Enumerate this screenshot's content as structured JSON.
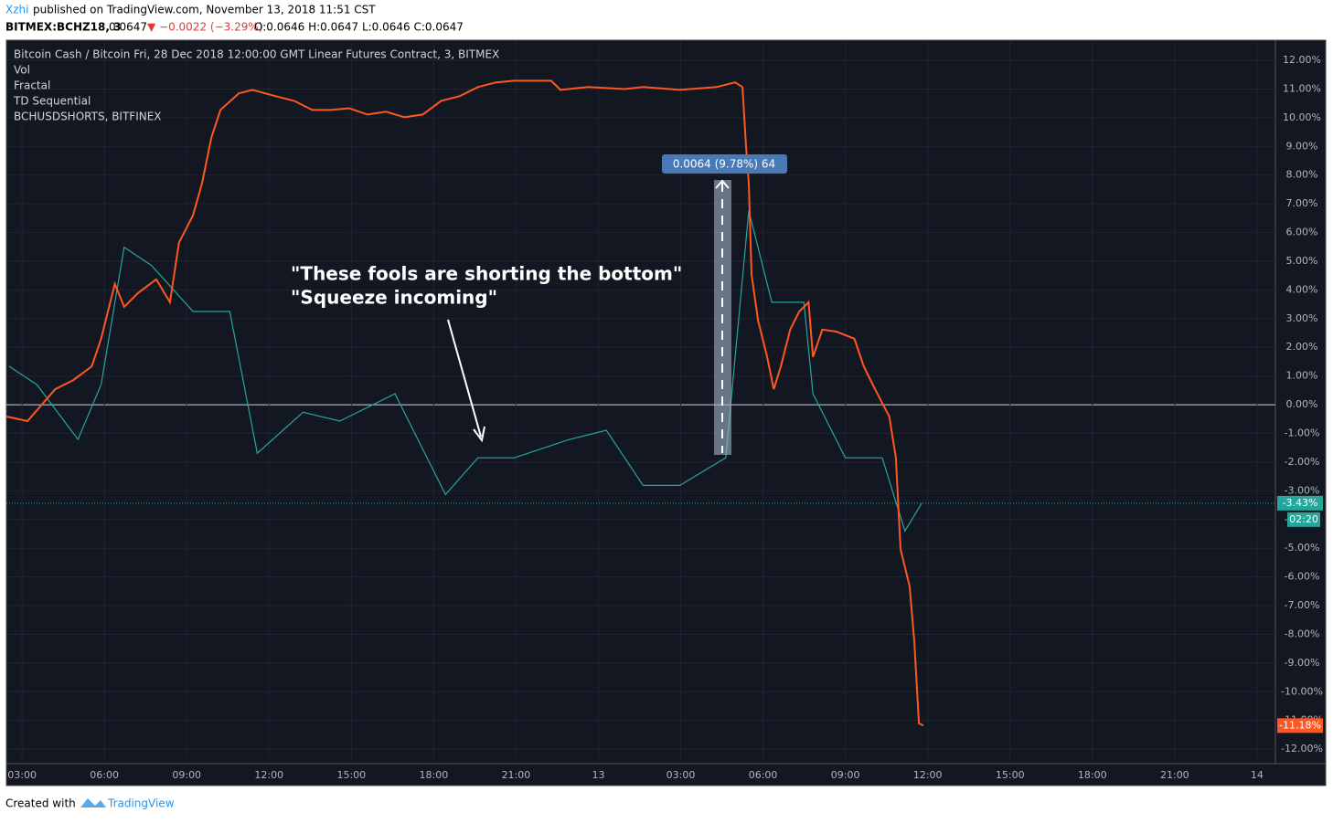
{
  "header": {
    "author": "Xzhi",
    "published": "published on TradingView.com, November 13, 2018 11:51 CST",
    "symbol": "BITMEX:BCHZ18, 3",
    "price": "0.0647",
    "change": "▼ −0.0022 (−3.29%)",
    "ohlc": "O:0.0646 H:0.0647 L:0.0646 C:0.0647"
  },
  "legend_extras": [
    "Vol",
    "Fractal",
    "TD Sequential"
  ],
  "annotations": [
    "\"These fools are shorting the bottom\"",
    "\"Squeeze incoming\""
  ],
  "measure_label": "0.0064 (9.78%) 64",
  "countdown": "02:20",
  "footer": {
    "created": "Created with",
    "brand": "TradingView"
  },
  "chart_data": {
    "type": "line",
    "series": [
      {
        "name": "Bitcoin Cash / Bitcoin Fri, 28 Dec 2018 12:00:00 GMT Linear Futures Contract, 3, BITMEX",
        "color": "#26a69a",
        "x": [
          -0.47,
          0.54,
          2.04,
          2.88,
          3.72,
          4.72,
          6.23,
          7.57,
          8.57,
          10.24,
          11.58,
          13.59,
          15.43,
          16.61,
          17.94,
          19.95,
          21.29,
          22.63,
          23.97,
          25.64,
          26.48,
          27.32,
          28.49,
          28.82,
          30.0,
          31.34,
          32.17,
          32.78
        ],
        "values": [
          1.34,
          0.7,
          -1.21,
          0.7,
          5.49,
          4.85,
          3.25,
          3.25,
          -1.69,
          -0.26,
          -0.57,
          0.38,
          -3.13,
          -1.85,
          -1.85,
          -1.21,
          -0.89,
          -2.81,
          -2.81,
          -1.85,
          6.76,
          3.57,
          3.57,
          0.38,
          -1.85,
          -1.85,
          -4.4,
          -3.43
        ],
        "last_label": {
          "value": -3.43,
          "label": "-3.43%"
        }
      },
      {
        "name": "BCHUSDSHORTS, BITFINEX",
        "color": "#ff5722",
        "x": [
          -0.57,
          0.2,
          1.21,
          1.87,
          2.54,
          2.88,
          3.38,
          3.72,
          4.22,
          4.89,
          5.39,
          5.72,
          6.23,
          6.56,
          6.9,
          7.23,
          7.9,
          8.4,
          9.24,
          9.91,
          10.58,
          11.25,
          11.92,
          12.59,
          13.26,
          13.93,
          14.6,
          15.27,
          15.94,
          16.61,
          17.27,
          17.94,
          19.28,
          19.62,
          20.62,
          21.96,
          22.63,
          23.97,
          25.31,
          25.98,
          26.25,
          26.38,
          26.48,
          26.58,
          26.82,
          27.15,
          27.39,
          27.65,
          27.99,
          28.32,
          28.66,
          28.82,
          29.16,
          29.66,
          30.33,
          30.67,
          31.0,
          31.34,
          31.6,
          31.84,
          32.01,
          32.34,
          32.51,
          32.68,
          32.84
        ],
        "values": [
          -0.41,
          -0.57,
          0.54,
          0.86,
          1.34,
          2.3,
          4.21,
          3.41,
          3.89,
          4.37,
          3.57,
          5.65,
          6.6,
          7.72,
          9.31,
          10.27,
          10.85,
          10.97,
          10.75,
          10.59,
          10.27,
          10.27,
          10.33,
          10.11,
          10.21,
          10.02,
          10.11,
          10.59,
          10.75,
          11.07,
          11.23,
          11.29,
          11.29,
          10.97,
          11.07,
          11.0,
          11.07,
          10.97,
          11.07,
          11.23,
          11.07,
          9.0,
          7.72,
          4.53,
          2.93,
          1.66,
          0.54,
          1.34,
          2.62,
          3.25,
          3.57,
          1.66,
          2.62,
          2.55,
          2.3,
          1.34,
          0.7,
          0.06,
          -0.41,
          -1.85,
          -5.04,
          -6.32,
          -8.23,
          -11.1,
          -11.18
        ],
        "last_label": {
          "value": -11.18,
          "label": "-11.18%"
        }
      }
    ],
    "xlim": [
      -0.57,
      45.67
    ],
    "xticks": [
      {
        "value": 0,
        "label": "03:00"
      },
      {
        "value": 3,
        "label": "06:00"
      },
      {
        "value": 6,
        "label": "09:00"
      },
      {
        "value": 9,
        "label": "12:00"
      },
      {
        "value": 12,
        "label": "15:00"
      },
      {
        "value": 15,
        "label": "18:00"
      },
      {
        "value": 18,
        "label": "21:00"
      },
      {
        "value": 21,
        "label": "13"
      },
      {
        "value": 24,
        "label": "03:00"
      },
      {
        "value": 27,
        "label": "06:00"
      },
      {
        "value": 30,
        "label": "09:00"
      },
      {
        "value": 33,
        "label": "12:00"
      },
      {
        "value": 36,
        "label": "15:00"
      },
      {
        "value": 39,
        "label": "18:00"
      },
      {
        "value": 42,
        "label": "21:00"
      },
      {
        "value": 45,
        "label": "14"
      }
    ],
    "ylim": [
      -12.41,
      12.67
    ],
    "yticks": [
      {
        "value": 12,
        "label": "12.00%"
      },
      {
        "value": 11,
        "label": "11.00%"
      },
      {
        "value": 10,
        "label": "10.00%"
      },
      {
        "value": 9,
        "label": "9.00%"
      },
      {
        "value": 8,
        "label": "8.00%"
      },
      {
        "value": 7,
        "label": "7.00%"
      },
      {
        "value": 6,
        "label": "6.00%"
      },
      {
        "value": 5,
        "label": "5.00%"
      },
      {
        "value": 4,
        "label": "4.00%"
      },
      {
        "value": 3,
        "label": "3.00%"
      },
      {
        "value": 2,
        "label": "2.00%"
      },
      {
        "value": 1,
        "label": "1.00%"
      },
      {
        "value": 0,
        "label": "0.00%"
      },
      {
        "value": -1,
        "label": "-1.00%"
      },
      {
        "value": -2,
        "label": "-2.00%"
      },
      {
        "value": -3,
        "label": "-3.00%"
      },
      {
        "value": -4,
        "label": "-4.00%"
      },
      {
        "value": -5,
        "label": "-5.00%"
      },
      {
        "value": -6,
        "label": "-6.00%"
      },
      {
        "value": -7,
        "label": "-7.00%"
      },
      {
        "value": -8,
        "label": "-8.00%"
      },
      {
        "value": -9,
        "label": "-9.00%"
      },
      {
        "value": -10,
        "label": "-10.00%"
      },
      {
        "value": -11,
        "label": "-11.00%"
      },
      {
        "value": -12,
        "label": "-12.00%"
      }
    ],
    "grid": true
  }
}
